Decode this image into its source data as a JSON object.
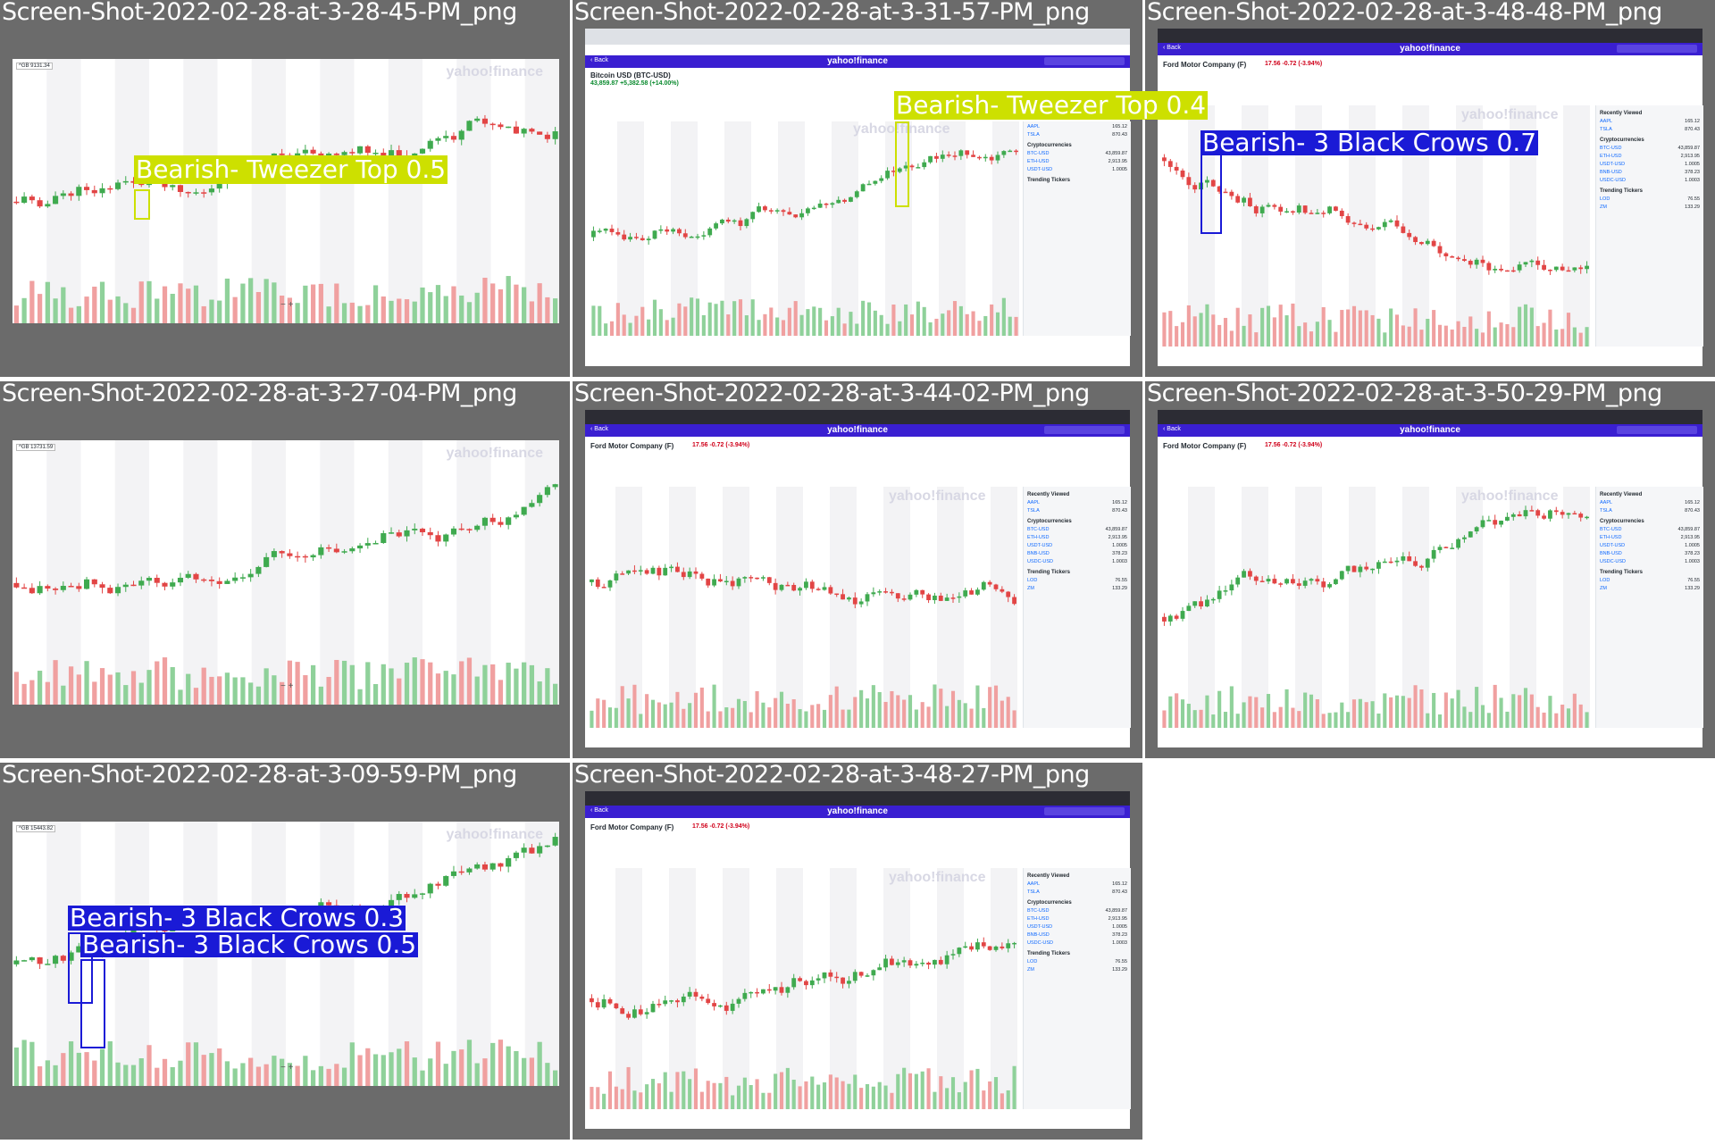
{
  "tiles": [
    {
      "title": "Screen-Shot-2022-02-28-at-3-28-45-PM_png",
      "price_tag": "^GB 9131.34",
      "watermark": "yahoo!finance",
      "candles_up_bias": 0.6,
      "labels": [
        {
          "text": "Bearish- Tweezer Top 0.5",
          "color": "#cde000"
        }
      ]
    },
    {
      "title": "Screen-Shot-2022-02-28-at-3-31-57-PM_png",
      "stock": "Bitcoin USD (BTC-USD)",
      "price": "43,859.87 +5,382.58 (+14.00%)",
      "watermark": "yahoo!finance",
      "labels": [
        {
          "text": "Bearish- Tweezer Top 0.4",
          "color": "#cde000"
        }
      ]
    },
    {
      "title": "Screen-Shot-2022-02-28-at-3-48-48-PM_png",
      "stock": "Ford Motor Company (F)",
      "price": "17.56 -0.72 (-3.94%)",
      "watermark": "yahoo!finance",
      "labels": [
        {
          "text": "Bearish- 3 Black Crows 0.7",
          "color": "#1a1ad6"
        }
      ]
    },
    {
      "title": "Screen-Shot-2022-02-28-at-3-27-04-PM_png",
      "price_tag": "^GB 13731.59",
      "watermark": "yahoo!finance",
      "labels": []
    },
    {
      "title": "Screen-Shot-2022-02-28-at-3-44-02-PM_png",
      "stock": "Ford Motor Company (F)",
      "price": "17.56 -0.72 (-3.94%)",
      "watermark": "yahoo!finance",
      "labels": []
    },
    {
      "title": "Screen-Shot-2022-02-28-at-3-50-29-PM_png",
      "stock": "Ford Motor Company (F)",
      "price": "17.56 -0.72 (-3.94%)",
      "watermark": "yahoo!finance",
      "labels": []
    },
    {
      "title": "Screen-Shot-2022-02-28-at-3-09-59-PM_png",
      "price_tag": "^GB 15443.82",
      "watermark": "yahoo!finance",
      "labels": [
        {
          "text": "Bearish- 3 Black Crows 0.3",
          "color": "#1a1ad6"
        },
        {
          "text": "Bearish- 3 Black Crows 0.5",
          "color": "#1a1ad6"
        }
      ]
    },
    {
      "title": "Screen-Shot-2022-02-28-at-3-48-27-PM_png",
      "stock": "Ford Motor Company (F)",
      "price": "17.56 -0.72 (-3.94%)",
      "watermark": "yahoo!finance",
      "labels": []
    }
  ],
  "yahoo": {
    "logo": "yahoo!finance",
    "back": "‹ Back"
  },
  "side_panel": {
    "recently_viewed": "Recently Viewed",
    "crypto": "Cryptocurrencies",
    "trending": "Trending Tickers",
    "recent_rows": [
      {
        "sym": "AAPL",
        "val": "165.12"
      },
      {
        "sym": "TSLA",
        "val": "870.43"
      }
    ],
    "crypto_rows": [
      {
        "sym": "BTC-USD",
        "val": "43,859.87"
      },
      {
        "sym": "ETH-USD",
        "val": "2,913.95"
      },
      {
        "sym": "USDT-USD",
        "val": "1.0005"
      },
      {
        "sym": "BNB-USD",
        "val": "378.23"
      },
      {
        "sym": "USDC-USD",
        "val": "1.0003"
      }
    ],
    "trending_rows": [
      {
        "sym": "LOD",
        "val": "76.55"
      },
      {
        "sym": "ZM",
        "val": "133.29"
      }
    ]
  },
  "colors": {
    "up": "#3faa4f",
    "down": "#e24545",
    "vol_up": "#8fd19a",
    "vol_down": "#f0a0a0"
  }
}
